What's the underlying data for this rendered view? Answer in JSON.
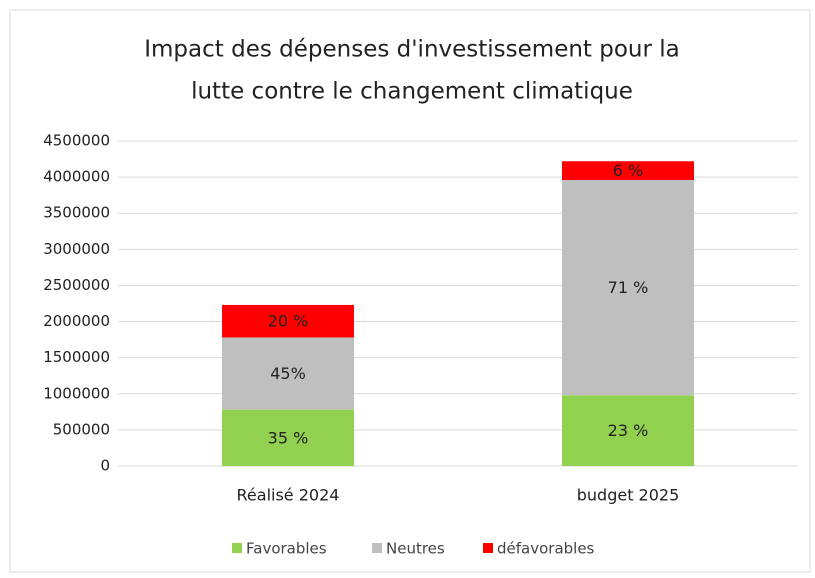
{
  "chart_data": {
    "type": "stacked_bar",
    "title": [
      "Impact des dépenses d'investissement  pour la",
      "lutte contre le changement climatique"
    ],
    "categories": [
      "Réalisé 2024",
      "budget 2025"
    ],
    "series": [
      {
        "name": "Favorables",
        "color": "#92d050",
        "values": [
          780000,
          980000
        ],
        "value_labels": [
          "35 %",
          "23 %"
        ]
      },
      {
        "name": "Neutres",
        "color": "#bfbfbf",
        "values": [
          1000000,
          2980000
        ],
        "value_labels": [
          "45%",
          "71 %"
        ]
      },
      {
        "name": "défavorables",
        "color": "#ff0000",
        "values": [
          450000,
          260000
        ],
        "value_labels": [
          "20 %",
          "6 %"
        ]
      }
    ],
    "ylim": [
      0,
      4500000
    ],
    "yticks": [
      0,
      500000,
      1000000,
      1500000,
      2000000,
      2500000,
      3000000,
      3500000,
      4000000,
      4500000
    ],
    "grid": true,
    "legend": "bottom"
  }
}
